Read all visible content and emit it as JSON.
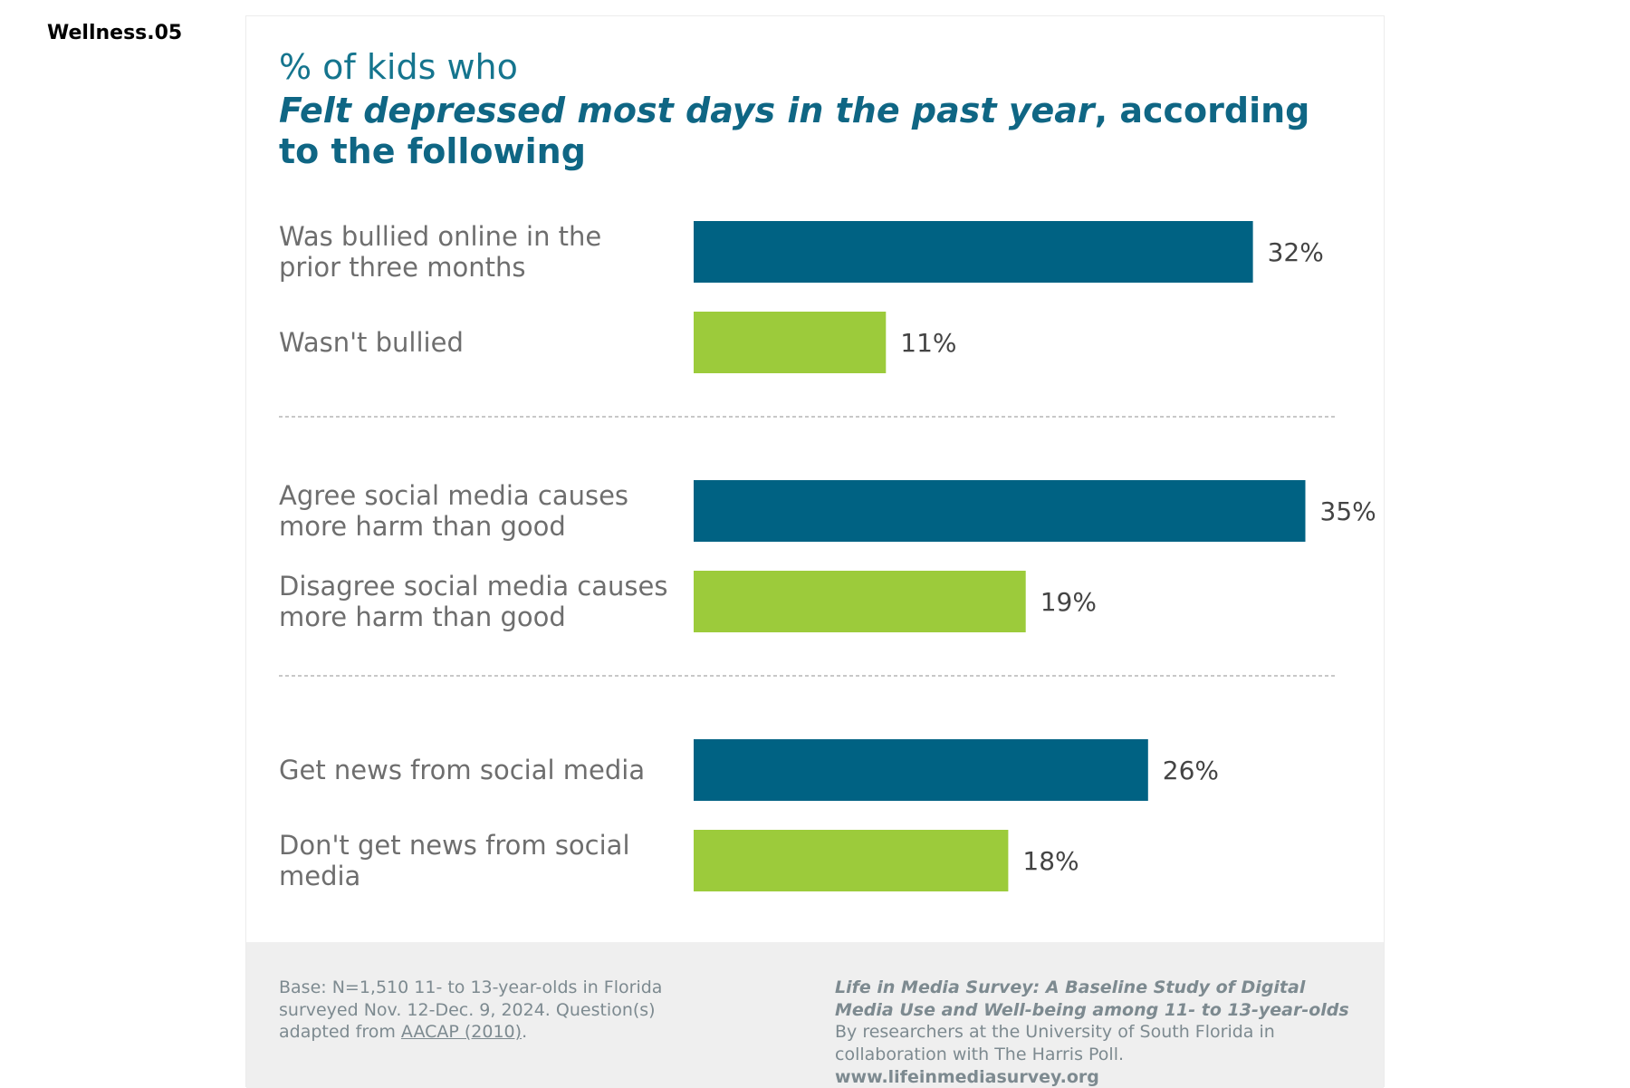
{
  "page_tag": "Wellness.05",
  "header": {
    "title_pre": "% of kids who",
    "title_emph": "Felt depressed most days in the past year",
    "title_rest": ", according to the following"
  },
  "colors": {
    "primary_bar": "#006283",
    "secondary_bar": "#9ccb3b",
    "label_text": "#6e6e6e",
    "value_text": "#444444",
    "divider": "#b5b5b5"
  },
  "chart_data": {
    "type": "bar",
    "orientation": "horizontal",
    "value_suffix": "%",
    "xlim": [
      0,
      35
    ],
    "grid": false,
    "groups": [
      {
        "bars": [
          {
            "label": "Was bullied online in the prior three months",
            "value": 32,
            "style": "primary"
          },
          {
            "label": "Wasn't bullied",
            "value": 11,
            "style": "secondary"
          }
        ]
      },
      {
        "bars": [
          {
            "label": "Agree social media causes more harm than good",
            "value": 35,
            "style": "primary"
          },
          {
            "label": "Disagree social media causes more harm than good",
            "value": 19,
            "style": "secondary"
          }
        ]
      },
      {
        "bars": [
          {
            "label": "Get news from social media",
            "value": 26,
            "style": "primary"
          },
          {
            "label": "Don't get news from social media",
            "value": 18,
            "style": "secondary"
          }
        ]
      }
    ]
  },
  "footer": {
    "base_text": "Base: N=1,510 11- to 13-year-olds in Florida surveyed Nov. 12-Dec. 9, 2024. Question(s) adapted from",
    "source_link": "AACAP (2010)",
    "base_end": ".",
    "study_title": "Life in Media Survey: A Baseline Study of Digital Media Use and Well-being among 11- to 13-year-olds",
    "credit": "By researchers at the University of South Florida in collaboration with The Harris Poll.",
    "url": "www.lifeinmediasurvey.org"
  }
}
